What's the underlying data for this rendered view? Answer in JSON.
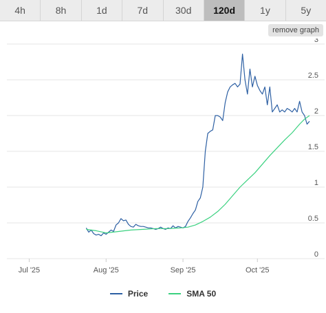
{
  "range_tabs": [
    {
      "label": "4h",
      "active": false
    },
    {
      "label": "8h",
      "active": false
    },
    {
      "label": "1d",
      "active": false
    },
    {
      "label": "7d",
      "active": false
    },
    {
      "label": "30d",
      "active": false
    },
    {
      "label": "120d",
      "active": true
    },
    {
      "label": "1y",
      "active": false
    },
    {
      "label": "5y",
      "active": false
    }
  ],
  "remove_graph_label": "remove graph",
  "colors": {
    "price": "#2c5fa3",
    "sma": "#39d17f",
    "grid": "#e6e6e6",
    "axis_text": "#555555"
  },
  "chart_data": {
    "type": "line",
    "x_ticks": [
      {
        "label": "Jul '25",
        "date": "2025-07-01"
      },
      {
        "label": "Aug '25",
        "date": "2025-08-01"
      },
      {
        "label": "Sep '25",
        "date": "2025-09-01"
      },
      {
        "label": "Oct '25",
        "date": "2025-10-01"
      }
    ],
    "y_ticks": [
      0,
      0.5,
      1,
      1.5,
      2,
      2.5,
      3
    ],
    "ylim": [
      0,
      3
    ],
    "xlim": [
      "2025-06-22",
      "2025-10-22"
    ],
    "grid": true,
    "legend_position": "bottom",
    "series": [
      {
        "name": "Price",
        "color_key": "price",
        "points": [
          [
            "2025-07-24",
            0.43
          ],
          [
            "2025-07-25",
            0.37
          ],
          [
            "2025-07-26",
            0.4
          ],
          [
            "2025-07-27",
            0.35
          ],
          [
            "2025-07-28",
            0.33
          ],
          [
            "2025-07-29",
            0.34
          ],
          [
            "2025-07-30",
            0.32
          ],
          [
            "2025-07-31",
            0.36
          ],
          [
            "2025-08-01",
            0.34
          ],
          [
            "2025-08-02",
            0.37
          ],
          [
            "2025-08-03",
            0.4
          ],
          [
            "2025-08-04",
            0.38
          ],
          [
            "2025-08-05",
            0.47
          ],
          [
            "2025-08-06",
            0.5
          ],
          [
            "2025-08-07",
            0.56
          ],
          [
            "2025-08-08",
            0.53
          ],
          [
            "2025-08-09",
            0.54
          ],
          [
            "2025-08-10",
            0.48
          ],
          [
            "2025-08-11",
            0.45
          ],
          [
            "2025-08-12",
            0.44
          ],
          [
            "2025-08-13",
            0.48
          ],
          [
            "2025-08-14",
            0.46
          ],
          [
            "2025-08-15",
            0.45
          ],
          [
            "2025-08-16",
            0.45
          ],
          [
            "2025-08-17",
            0.44
          ],
          [
            "2025-08-18",
            0.43
          ],
          [
            "2025-08-19",
            0.43
          ],
          [
            "2025-08-20",
            0.42
          ],
          [
            "2025-08-21",
            0.41
          ],
          [
            "2025-08-22",
            0.42
          ],
          [
            "2025-08-23",
            0.44
          ],
          [
            "2025-08-24",
            0.42
          ],
          [
            "2025-08-25",
            0.41
          ],
          [
            "2025-08-26",
            0.43
          ],
          [
            "2025-08-27",
            0.42
          ],
          [
            "2025-08-28",
            0.46
          ],
          [
            "2025-08-29",
            0.43
          ],
          [
            "2025-08-30",
            0.45
          ],
          [
            "2025-08-31",
            0.44
          ],
          [
            "2025-09-01",
            0.43
          ],
          [
            "2025-09-02",
            0.45
          ],
          [
            "2025-09-03",
            0.52
          ],
          [
            "2025-09-04",
            0.57
          ],
          [
            "2025-09-05",
            0.63
          ],
          [
            "2025-09-06",
            0.68
          ],
          [
            "2025-09-07",
            0.8
          ],
          [
            "2025-09-08",
            0.85
          ],
          [
            "2025-09-09",
            1.0
          ],
          [
            "2025-09-10",
            1.5
          ],
          [
            "2025-09-11",
            1.75
          ],
          [
            "2025-09-12",
            1.78
          ],
          [
            "2025-09-13",
            1.8
          ],
          [
            "2025-09-14",
            2.0
          ],
          [
            "2025-09-15",
            2.0
          ],
          [
            "2025-09-16",
            1.98
          ],
          [
            "2025-09-17",
            1.93
          ],
          [
            "2025-09-18",
            2.18
          ],
          [
            "2025-09-19",
            2.33
          ],
          [
            "2025-09-20",
            2.4
          ],
          [
            "2025-09-21",
            2.43
          ],
          [
            "2025-09-22",
            2.45
          ],
          [
            "2025-09-23",
            2.4
          ],
          [
            "2025-09-24",
            2.44
          ],
          [
            "2025-09-25",
            2.86
          ],
          [
            "2025-09-26",
            2.5
          ],
          [
            "2025-09-27",
            2.3
          ],
          [
            "2025-09-28",
            2.65
          ],
          [
            "2025-09-29",
            2.4
          ],
          [
            "2025-09-30",
            2.55
          ],
          [
            "2025-10-01",
            2.42
          ],
          [
            "2025-10-02",
            2.35
          ],
          [
            "2025-10-03",
            2.3
          ],
          [
            "2025-10-04",
            2.4
          ],
          [
            "2025-10-05",
            2.15
          ],
          [
            "2025-10-06",
            2.4
          ],
          [
            "2025-10-07",
            2.05
          ],
          [
            "2025-10-08",
            2.1
          ],
          [
            "2025-10-09",
            2.15
          ],
          [
            "2025-10-10",
            2.05
          ],
          [
            "2025-10-11",
            2.08
          ],
          [
            "2025-10-12",
            2.05
          ],
          [
            "2025-10-13",
            2.1
          ],
          [
            "2025-10-14",
            2.08
          ],
          [
            "2025-10-15",
            2.05
          ],
          [
            "2025-10-16",
            2.1
          ],
          [
            "2025-10-17",
            2.05
          ],
          [
            "2025-10-18",
            2.2
          ],
          [
            "2025-10-19",
            2.05
          ],
          [
            "2025-10-20",
            2.0
          ],
          [
            "2025-10-21",
            1.88
          ],
          [
            "2025-10-22",
            1.92
          ]
        ]
      },
      {
        "name": "SMA 50",
        "color_key": "sma",
        "points": [
          [
            "2025-07-24",
            0.41
          ],
          [
            "2025-07-28",
            0.39
          ],
          [
            "2025-08-01",
            0.36
          ],
          [
            "2025-08-06",
            0.38
          ],
          [
            "2025-08-11",
            0.4
          ],
          [
            "2025-08-16",
            0.41
          ],
          [
            "2025-08-21",
            0.42
          ],
          [
            "2025-08-26",
            0.42
          ],
          [
            "2025-08-31",
            0.43
          ],
          [
            "2025-09-03",
            0.44
          ],
          [
            "2025-09-06",
            0.47
          ],
          [
            "2025-09-09",
            0.52
          ],
          [
            "2025-09-12",
            0.58
          ],
          [
            "2025-09-15",
            0.66
          ],
          [
            "2025-09-18",
            0.76
          ],
          [
            "2025-09-21",
            0.88
          ],
          [
            "2025-09-24",
            1.0
          ],
          [
            "2025-09-27",
            1.1
          ],
          [
            "2025-09-30",
            1.2
          ],
          [
            "2025-10-03",
            1.32
          ],
          [
            "2025-10-06",
            1.44
          ],
          [
            "2025-10-09",
            1.55
          ],
          [
            "2025-10-12",
            1.66
          ],
          [
            "2025-10-15",
            1.76
          ],
          [
            "2025-10-18",
            1.88
          ],
          [
            "2025-10-20",
            1.95
          ],
          [
            "2025-10-22",
            2.0
          ]
        ]
      }
    ]
  }
}
